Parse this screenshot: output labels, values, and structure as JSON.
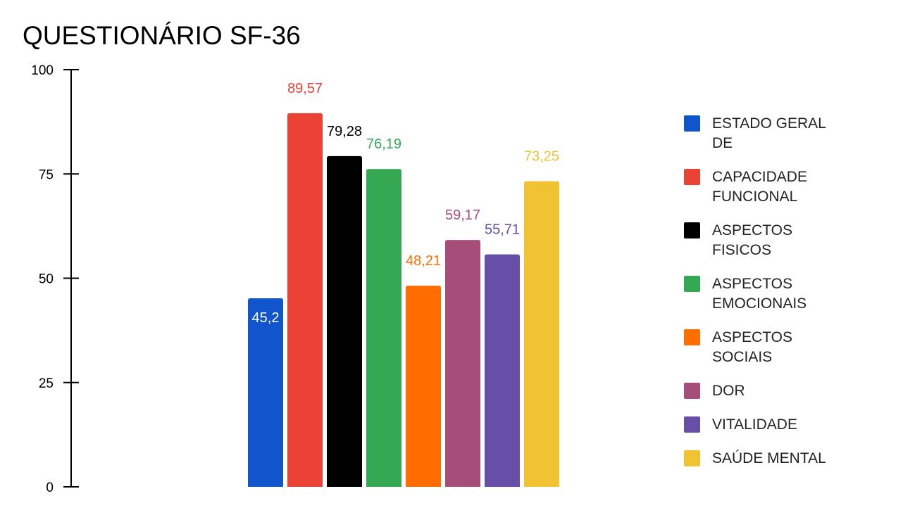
{
  "chart_data": {
    "type": "bar",
    "title": "QUESTIONÁRIO SF-36",
    "xlabel": "",
    "ylabel": "",
    "ylim": [
      0,
      100
    ],
    "yticks": [
      "0",
      "25",
      "50",
      "75",
      "100"
    ],
    "grid": false,
    "legend_position": "right",
    "series": [
      {
        "name": "ESTADO GERAL DE",
        "value": 45.2,
        "label": "45,2",
        "color": "#1155cc"
      },
      {
        "name": "CAPACIDADE FUNCIONAL",
        "value": 89.57,
        "label": "89,57",
        "color": "#ea4335"
      },
      {
        "name": "ASPECTOS FISICOS",
        "value": 79.28,
        "label": "79,28",
        "color": "#000000"
      },
      {
        "name": "ASPECTOS EMOCIONAIS",
        "value": 76.19,
        "label": "76,19",
        "color": "#34a853"
      },
      {
        "name": "ASPECTOS SOCIAIS",
        "value": 48.21,
        "label": "48,21",
        "color": "#ff6d01"
      },
      {
        "name": "DOR",
        "value": 59.17,
        "label": "59,17",
        "color": "#a64d79"
      },
      {
        "name": "VITALIDADE",
        "value": 55.71,
        "label": "55,71",
        "color": "#674ea7"
      },
      {
        "name": "SAÚDE MENTAL",
        "value": 73.25,
        "label": "73,25",
        "color": "#f1c232"
      }
    ]
  }
}
